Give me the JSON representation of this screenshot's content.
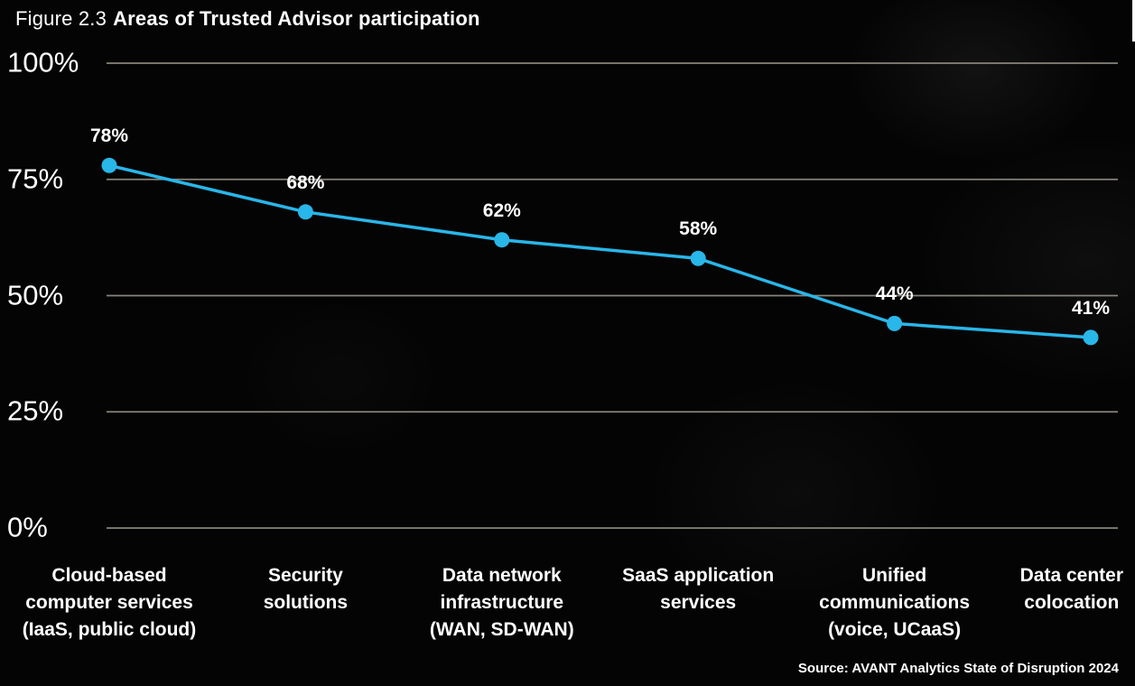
{
  "figure": {
    "label": "Figure 2.3",
    "title": "Areas of Trusted Advisor participation"
  },
  "source": "Source: AVANT Analytics State of Disruption 2024",
  "chart_data": {
    "type": "line",
    "title": "Areas of Trusted Advisor participation",
    "categories": [
      [
        "Cloud-based",
        "computer services",
        "(IaaS, public cloud)"
      ],
      [
        "Security",
        "solutions"
      ],
      [
        "Data network",
        "infrastructure",
        "(WAN, SD-WAN)"
      ],
      [
        "SaaS application",
        "services"
      ],
      [
        "Unified",
        "communications",
        "(voice, UCaaS)"
      ],
      [
        "Data center",
        "colocation"
      ]
    ],
    "values": [
      78,
      68,
      62,
      58,
      44,
      41
    ],
    "data_labels": [
      "78%",
      "68%",
      "62%",
      "58%",
      "44%",
      "41%"
    ],
    "y_ticks": [
      {
        "label": "100%",
        "value": 100
      },
      {
        "label": "75%",
        "value": 75
      },
      {
        "label": "50%",
        "value": 50
      },
      {
        "label": "25%",
        "value": 25
      },
      {
        "label": "0%",
        "value": 0
      }
    ],
    "ylim": [
      0,
      100
    ],
    "grid": true,
    "legend": false,
    "colors": {
      "line": "#29b6e9",
      "point": "#29b6e9",
      "grid": "#87857a",
      "text": "#ffffff",
      "background": "#040404"
    }
  }
}
